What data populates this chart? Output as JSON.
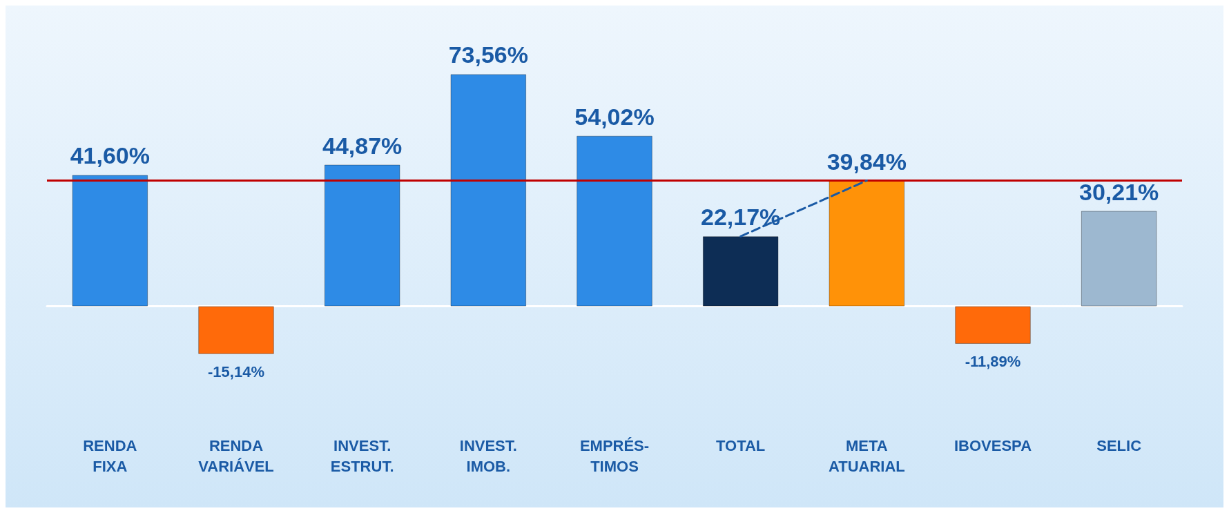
{
  "chart_data": {
    "type": "bar",
    "categories": [
      "RENDA\nFIXA",
      "RENDA\nVARIÁVEL",
      "INVEST.\nESTRUT.",
      "INVEST.\nIMOB.",
      "EMPRÉS-\nTIMOS",
      "TOTAL",
      "META\nATUARIAL",
      "IBOVESPA",
      "SELIC"
    ],
    "series": [
      {
        "values": [
          41.6,
          -15.14,
          44.87,
          73.56,
          54.02,
          22.17,
          39.84,
          -11.89,
          30.21
        ],
        "colors": [
          "#2e8be6",
          "#ff6a0a",
          "#2e8be6",
          "#2e8be6",
          "#2e8be6",
          "#0d2d55",
          "#ff9208",
          "#ff6a0a",
          "#9db8d0"
        ],
        "value_labels": [
          "41,60%",
          "-15,14%",
          "44,87%",
          "73,56%",
          "54,02%",
          "22,17%",
          "39,84%",
          "-11,89%",
          "30,21%"
        ]
      },
      {
        "type": "line",
        "color": "#1a5aa5",
        "line_style": "dashed",
        "values": [
          null,
          null,
          null,
          null,
          null,
          22.17,
          39.84,
          null,
          null
        ]
      }
    ],
    "ref_lines": [
      {
        "axis": "y",
        "value": 39.84,
        "color": "#c00000"
      }
    ],
    "grid": false,
    "tick_labels": "x",
    "marker": "none"
  }
}
